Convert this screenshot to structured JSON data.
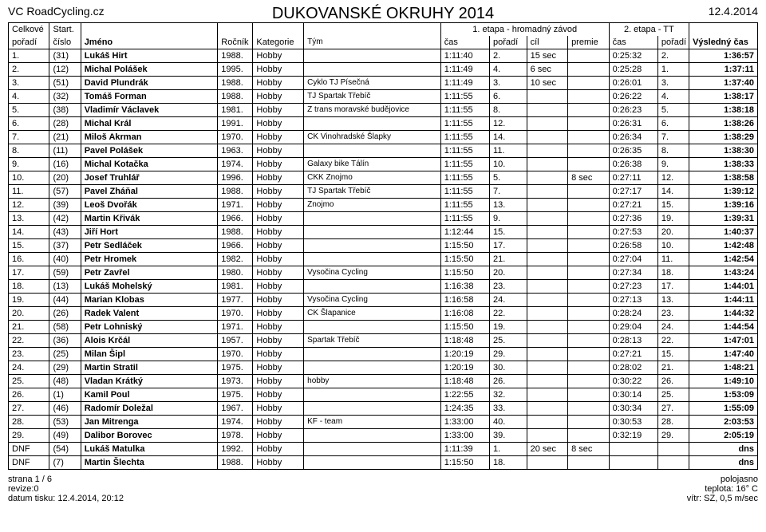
{
  "header": {
    "site": "VC RoadCycling.cz",
    "event": "DUKOVANSKÉ OKRUHY 2014",
    "date": "12.4.2014"
  },
  "colheaders": {
    "row1": {
      "overall": "Celkové",
      "start": "Start.",
      "stage1": "1. etapa - hromadný závod",
      "stage2": "2. etapa - TT"
    },
    "row2": {
      "rank": "pořadí",
      "num": "číslo",
      "name": "Jméno",
      "year": "Ročník",
      "cat": "Kategorie",
      "team": "Tým",
      "s1time": "čas",
      "s1rank": "pořadí",
      "goal": "cíl",
      "premie": "premie",
      "s2time": "čas",
      "s2rank": "pořadí",
      "final": "Výsledný čas"
    }
  },
  "rows": [
    {
      "rank": "1.",
      "num": "(31)",
      "name": "Lukáš Hirt",
      "year": "1988.",
      "cat": "Hobby",
      "team": "",
      "s1t": "1:11:40",
      "s1r": "2.",
      "goal": "15 sec",
      "prem": "",
      "s2t": "0:25:32",
      "s2r": "2.",
      "final": "1:36:57"
    },
    {
      "rank": "2.",
      "num": "(12)",
      "name": "Michal Polášek",
      "year": "1995.",
      "cat": "Hobby",
      "team": "",
      "s1t": "1:11:49",
      "s1r": "4.",
      "goal": "6 sec",
      "prem": "",
      "s2t": "0:25:28",
      "s2r": "1.",
      "final": "1:37:11"
    },
    {
      "rank": "3.",
      "num": "(51)",
      "name": "David Plundrák",
      "year": "1988.",
      "cat": "Hobby",
      "team": "Cyklo TJ Písečná",
      "s1t": "1:11:49",
      "s1r": "3.",
      "goal": "10 sec",
      "prem": "",
      "s2t": "0:26:01",
      "s2r": "3.",
      "final": "1:37:40"
    },
    {
      "rank": "4.",
      "num": "(32)",
      "name": "Tomáš Forman",
      "year": "1988.",
      "cat": "Hobby",
      "team": "TJ Spartak Třebíč",
      "s1t": "1:11:55",
      "s1r": "6.",
      "goal": "",
      "prem": "",
      "s2t": "0:26:22",
      "s2r": "4.",
      "final": "1:38:17"
    },
    {
      "rank": "5.",
      "num": "(38)",
      "name": "Vladimír Václavek",
      "year": "1981.",
      "cat": "Hobby",
      "team": "Z trans moravské budějovice",
      "s1t": "1:11:55",
      "s1r": "8.",
      "goal": "",
      "prem": "",
      "s2t": "0:26:23",
      "s2r": "5.",
      "final": "1:38:18"
    },
    {
      "rank": "6.",
      "num": "(28)",
      "name": "Michal Král",
      "year": "1991.",
      "cat": "Hobby",
      "team": "",
      "s1t": "1:11:55",
      "s1r": "12.",
      "goal": "",
      "prem": "",
      "s2t": "0:26:31",
      "s2r": "6.",
      "final": "1:38:26"
    },
    {
      "rank": "7.",
      "num": "(21)",
      "name": "Miloš Akrman",
      "year": "1970.",
      "cat": "Hobby",
      "team": "CK Vinohradské Šlapky",
      "s1t": "1:11:55",
      "s1r": "14.",
      "goal": "",
      "prem": "",
      "s2t": "0:26:34",
      "s2r": "7.",
      "final": "1:38:29"
    },
    {
      "rank": "8.",
      "num": "(11)",
      "name": "Pavel Polášek",
      "year": "1963.",
      "cat": "Hobby",
      "team": "",
      "s1t": "1:11:55",
      "s1r": "11.",
      "goal": "",
      "prem": "",
      "s2t": "0:26:35",
      "s2r": "8.",
      "final": "1:38:30"
    },
    {
      "rank": "9.",
      "num": "(16)",
      "name": "Michal Kotačka",
      "year": "1974.",
      "cat": "Hobby",
      "team": "Galaxy bike Tálín",
      "s1t": "1:11:55",
      "s1r": "10.",
      "goal": "",
      "prem": "",
      "s2t": "0:26:38",
      "s2r": "9.",
      "final": "1:38:33"
    },
    {
      "rank": "10.",
      "num": "(20)",
      "name": "Josef Truhlář",
      "year": "1996.",
      "cat": "Hobby",
      "team": "CKK Znojmo",
      "s1t": "1:11:55",
      "s1r": "5.",
      "goal": "",
      "prem": "8 sec",
      "s2t": "0:27:11",
      "s2r": "12.",
      "final": "1:38:58"
    },
    {
      "rank": "11.",
      "num": "(57)",
      "name": "Pavel Zháňal",
      "year": "1988.",
      "cat": "Hobby",
      "team": "TJ Spartak Třebíč",
      "s1t": "1:11:55",
      "s1r": "7.",
      "goal": "",
      "prem": "",
      "s2t": "0:27:17",
      "s2r": "14.",
      "final": "1:39:12"
    },
    {
      "rank": "12.",
      "num": "(39)",
      "name": "Leoš Dvořák",
      "year": "1971.",
      "cat": "Hobby",
      "team": "Znojmo",
      "s1t": "1:11:55",
      "s1r": "13.",
      "goal": "",
      "prem": "",
      "s2t": "0:27:21",
      "s2r": "15.",
      "final": "1:39:16"
    },
    {
      "rank": "13.",
      "num": "(42)",
      "name": "Martin Křivák",
      "year": "1966.",
      "cat": "Hobby",
      "team": "",
      "s1t": "1:11:55",
      "s1r": "9.",
      "goal": "",
      "prem": "",
      "s2t": "0:27:36",
      "s2r": "19.",
      "final": "1:39:31"
    },
    {
      "rank": "14.",
      "num": "(43)",
      "name": "Jiří Hort",
      "year": "1988.",
      "cat": "Hobby",
      "team": "",
      "s1t": "1:12:44",
      "s1r": "15.",
      "goal": "",
      "prem": "",
      "s2t": "0:27:53",
      "s2r": "20.",
      "final": "1:40:37"
    },
    {
      "rank": "15.",
      "num": "(37)",
      "name": "Petr Sedláček",
      "year": "1966.",
      "cat": "Hobby",
      "team": "",
      "s1t": "1:15:50",
      "s1r": "17.",
      "goal": "",
      "prem": "",
      "s2t": "0:26:58",
      "s2r": "10.",
      "final": "1:42:48"
    },
    {
      "rank": "16.",
      "num": "(40)",
      "name": "Petr Hromek",
      "year": "1982.",
      "cat": "Hobby",
      "team": "",
      "s1t": "1:15:50",
      "s1r": "21.",
      "goal": "",
      "prem": "",
      "s2t": "0:27:04",
      "s2r": "11.",
      "final": "1:42:54"
    },
    {
      "rank": "17.",
      "num": "(59)",
      "name": "Petr Zavřel",
      "year": "1980.",
      "cat": "Hobby",
      "team": "Vysočina Cycling",
      "s1t": "1:15:50",
      "s1r": "20.",
      "goal": "",
      "prem": "",
      "s2t": "0:27:34",
      "s2r": "18.",
      "final": "1:43:24"
    },
    {
      "rank": "18.",
      "num": "(13)",
      "name": "Lukáš Mohelský",
      "year": "1981.",
      "cat": "Hobby",
      "team": "",
      "s1t": "1:16:38",
      "s1r": "23.",
      "goal": "",
      "prem": "",
      "s2t": "0:27:23",
      "s2r": "17.",
      "final": "1:44:01"
    },
    {
      "rank": "19.",
      "num": "(44)",
      "name": "Marian Klobas",
      "year": "1977.",
      "cat": "Hobby",
      "team": "Vysočina Cycling",
      "s1t": "1:16:58",
      "s1r": "24.",
      "goal": "",
      "prem": "",
      "s2t": "0:27:13",
      "s2r": "13.",
      "final": "1:44:11"
    },
    {
      "rank": "20.",
      "num": "(26)",
      "name": "Radek Valent",
      "year": "1970.",
      "cat": "Hobby",
      "team": "CK Šlapanice",
      "s1t": "1:16:08",
      "s1r": "22.",
      "goal": "",
      "prem": "",
      "s2t": "0:28:24",
      "s2r": "23.",
      "final": "1:44:32"
    },
    {
      "rank": "21.",
      "num": "(58)",
      "name": "Petr Lohniský",
      "year": "1971.",
      "cat": "Hobby",
      "team": "",
      "s1t": "1:15:50",
      "s1r": "19.",
      "goal": "",
      "prem": "",
      "s2t": "0:29:04",
      "s2r": "24.",
      "final": "1:44:54"
    },
    {
      "rank": "22.",
      "num": "(36)",
      "name": "Alois Krčál",
      "year": "1957.",
      "cat": "Hobby",
      "team": "Spartak Třebíč",
      "s1t": "1:18:48",
      "s1r": "25.",
      "goal": "",
      "prem": "",
      "s2t": "0:28:13",
      "s2r": "22.",
      "final": "1:47:01"
    },
    {
      "rank": "23.",
      "num": "(25)",
      "name": "Milan Šipl",
      "year": "1970.",
      "cat": "Hobby",
      "team": "",
      "s1t": "1:20:19",
      "s1r": "29.",
      "goal": "",
      "prem": "",
      "s2t": "0:27:21",
      "s2r": "15.",
      "final": "1:47:40"
    },
    {
      "rank": "24.",
      "num": "(29)",
      "name": "Martin Stratil",
      "year": "1975.",
      "cat": "Hobby",
      "team": "",
      "s1t": "1:20:19",
      "s1r": "30.",
      "goal": "",
      "prem": "",
      "s2t": "0:28:02",
      "s2r": "21.",
      "final": "1:48:21"
    },
    {
      "rank": "25.",
      "num": "(48)",
      "name": "Vladan Krátký",
      "year": "1973.",
      "cat": "Hobby",
      "team": "hobby",
      "s1t": "1:18:48",
      "s1r": "26.",
      "goal": "",
      "prem": "",
      "s2t": "0:30:22",
      "s2r": "26.",
      "final": "1:49:10"
    },
    {
      "rank": "26.",
      "num": "(1)",
      "name": "Kamil Poul",
      "year": "1975.",
      "cat": "Hobby",
      "team": "",
      "s1t": "1:22:55",
      "s1r": "32.",
      "goal": "",
      "prem": "",
      "s2t": "0:30:14",
      "s2r": "25.",
      "final": "1:53:09"
    },
    {
      "rank": "27.",
      "num": "(46)",
      "name": "Radomír Doležal",
      "year": "1967.",
      "cat": "Hobby",
      "team": "",
      "s1t": "1:24:35",
      "s1r": "33.",
      "goal": "",
      "prem": "",
      "s2t": "0:30:34",
      "s2r": "27.",
      "final": "1:55:09"
    },
    {
      "rank": "28.",
      "num": "(53)",
      "name": "Jan Mitrenga",
      "year": "1974.",
      "cat": "Hobby",
      "team": "KF - team",
      "s1t": "1:33:00",
      "s1r": "40.",
      "goal": "",
      "prem": "",
      "s2t": "0:30:53",
      "s2r": "28.",
      "final": "2:03:53"
    },
    {
      "rank": "29.",
      "num": "(49)",
      "name": "Dalibor Borovec",
      "year": "1978.",
      "cat": "Hobby",
      "team": "",
      "s1t": "1:33:00",
      "s1r": "39.",
      "goal": "",
      "prem": "",
      "s2t": "0:32:19",
      "s2r": "29.",
      "final": "2:05:19"
    },
    {
      "rank": "DNF",
      "num": "(54)",
      "name": "Lukáš Matulka",
      "year": "1992.",
      "cat": "Hobby",
      "team": "",
      "s1t": "1:11:39",
      "s1r": "1.",
      "goal": "20 sec",
      "prem": "8 sec",
      "s2t": "",
      "s2r": "",
      "final": "dns"
    },
    {
      "rank": "DNF",
      "num": "(7)",
      "name": "Martin Šlechta",
      "year": "1988.",
      "cat": "Hobby",
      "team": "",
      "s1t": "1:15:50",
      "s1r": "18.",
      "goal": "",
      "prem": "",
      "s2t": "",
      "s2r": "",
      "final": "dns"
    }
  ],
  "footer": {
    "left": [
      "strana 1 / 6",
      "revize:0",
      "datum tisku: 12.4.2014, 20:12"
    ],
    "right": [
      "polojasno",
      "teplota: 16° C",
      "vítr: SZ, 0,5 m/sec"
    ]
  }
}
